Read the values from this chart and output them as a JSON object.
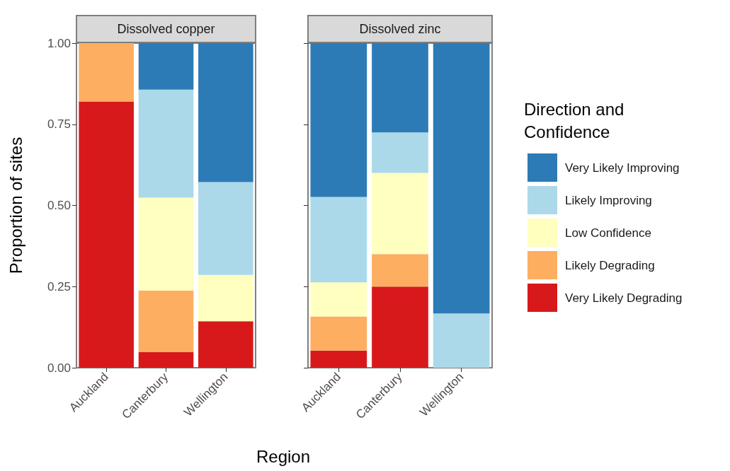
{
  "chart_data": [
    {
      "type": "bar",
      "title": "Dissolved copper",
      "xlabel": "Region",
      "ylabel": "Proportion of sites",
      "stacked": true,
      "categories": [
        "Auckland",
        "Canterbury",
        "Wellington"
      ],
      "ylim": [
        0,
        1
      ],
      "yticks": [
        {
          "value": 0,
          "label": "0.00"
        },
        {
          "value": 0.25,
          "label": "0.25"
        },
        {
          "value": 0.5,
          "label": "0.50"
        },
        {
          "value": 0.75,
          "label": "0.75"
        },
        {
          "value": 1,
          "label": "1.00"
        }
      ],
      "grid": false,
      "legend": false,
      "series": [
        {
          "color": "#d7191c",
          "values": [
            0.82,
            0.048,
            0.143
          ]
        },
        {
          "color": "#fdae61",
          "values": [
            0.18,
            0.19,
            0
          ]
        },
        {
          "color": "#ffffbf",
          "values": [
            0,
            0.286,
            0.143
          ]
        },
        {
          "color": "#abd9e9",
          "values": [
            0,
            0.333,
            0.286
          ]
        },
        {
          "color": "#2c7bb6",
          "values": [
            0,
            0.143,
            0.429
          ]
        }
      ]
    },
    {
      "type": "bar",
      "title": "Dissolved zinc",
      "legend_title": "Direction and Confidence",
      "stacked": true,
      "categories": [
        "Auckland",
        "Canterbury",
        "Wellington"
      ],
      "ylim": [
        0,
        1
      ],
      "yticks": [
        0,
        0.25,
        0.5,
        0.75,
        1
      ],
      "tick_labels": "x",
      "grid": false,
      "legend": "right",
      "series": [
        {
          "name": "Very Likely Degrading",
          "color": "#d7191c",
          "values": [
            0.053,
            0.25,
            0
          ]
        },
        {
          "name": "Likely Degrading",
          "color": "#fdae61",
          "values": [
            0.105,
            0.1,
            0
          ]
        },
        {
          "name": "Low Confidence",
          "color": "#ffffbf",
          "values": [
            0.105,
            0.25,
            0
          ]
        },
        {
          "name": "Likely Improving",
          "color": "#abd9e9",
          "values": [
            0.263,
            0.125,
            0.167
          ]
        },
        {
          "name": "Very Likely Improving",
          "color": "#2c7bb6",
          "values": [
            0.474,
            0.275,
            0.833
          ]
        }
      ]
    }
  ]
}
